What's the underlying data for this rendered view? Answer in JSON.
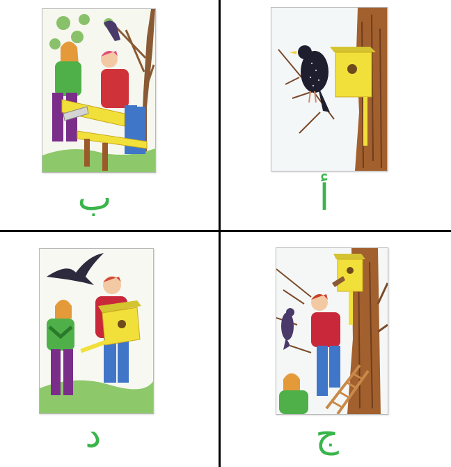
{
  "panels": [
    {
      "id": "top-right",
      "letter": "أ"
    },
    {
      "id": "top-left",
      "letter": "ب"
    },
    {
      "id": "bottom-right",
      "letter": "ج"
    },
    {
      "id": "bottom-left",
      "letter": "د"
    }
  ],
  "colors": {
    "letter": "#39b54a",
    "grid": "#000000",
    "birdhouse": "#f2e03a",
    "bark": "#9b5a2a",
    "grass": "#7cc44a"
  }
}
